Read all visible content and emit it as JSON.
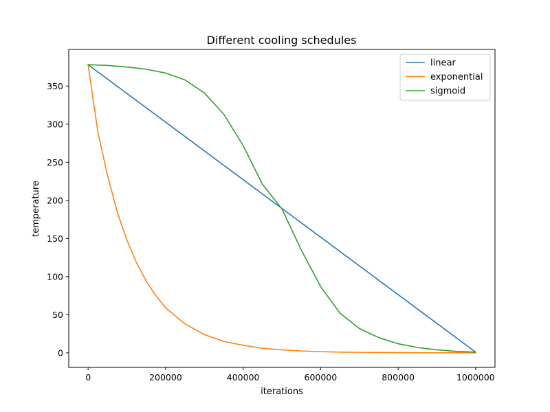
{
  "chart_data": {
    "type": "line",
    "title": "Different cooling schedules",
    "xlabel": "iterations",
    "ylabel": "temperature",
    "xlim": [
      -50000,
      1050000
    ],
    "ylim": [
      -19,
      398
    ],
    "xticks": [
      0,
      200000,
      400000,
      600000,
      800000,
      1000000
    ],
    "xtick_labels": [
      "0",
      "200000",
      "400000",
      "600000",
      "800000",
      "1000000"
    ],
    "yticks": [
      0,
      50,
      100,
      150,
      200,
      250,
      300,
      350
    ],
    "ytick_labels": [
      "0",
      "50",
      "100",
      "150",
      "200",
      "250",
      "300",
      "350"
    ],
    "grid": false,
    "legend_position": "top-right",
    "series": [
      {
        "name": "linear",
        "color": "#1f77b4",
        "x": [
          0,
          1000000
        ],
        "y": [
          378,
          1
        ]
      },
      {
        "name": "exponential",
        "color": "#ff7f0e",
        "x": [
          0,
          25000,
          50000,
          75000,
          100000,
          125000,
          150000,
          175000,
          200000,
          250000,
          300000,
          350000,
          400000,
          450000,
          500000,
          550000,
          600000,
          650000,
          700000,
          750000,
          800000,
          850000,
          900000,
          950000,
          1000000
        ],
        "y": [
          378,
          290,
          233,
          185,
          148,
          118,
          94,
          75,
          59,
          38,
          24,
          15,
          10,
          6,
          4,
          2.5,
          1.6,
          1.0,
          0.7,
          0.5,
          0.3,
          0.2,
          0.15,
          0.1,
          0.1
        ]
      },
      {
        "name": "sigmoid",
        "color": "#2ca02c",
        "x": [
          0,
          50000,
          100000,
          150000,
          200000,
          250000,
          300000,
          350000,
          400000,
          450000,
          500000,
          550000,
          600000,
          650000,
          700000,
          750000,
          800000,
          850000,
          900000,
          950000,
          1000000
        ],
        "y": [
          378,
          377,
          375,
          372,
          367,
          358,
          341,
          313,
          272,
          221,
          189,
          135,
          87,
          52,
          32,
          20,
          12,
          7,
          4,
          2,
          1
        ]
      }
    ]
  }
}
